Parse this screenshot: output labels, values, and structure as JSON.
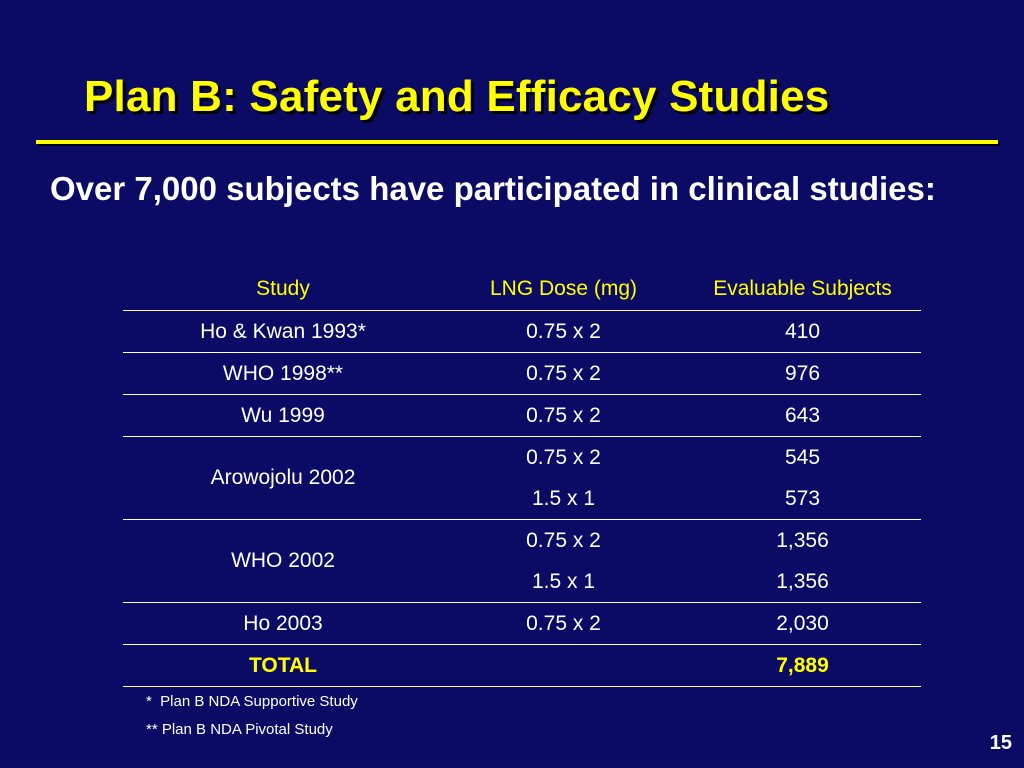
{
  "slide": {
    "title": "Plan B: Safety and Efficacy Studies",
    "subtitle": "Over 7,000 subjects have participated in clinical studies:",
    "page_number": "15",
    "colors": {
      "background": "#0b0b66",
      "accent": "#ffff00",
      "text": "#ffffff"
    }
  },
  "table": {
    "headers": [
      "Study",
      "LNG Dose (mg)",
      "Evaluable Subjects"
    ],
    "rows": [
      {
        "study": "Ho & Kwan 1993*",
        "dose": "0.75 x 2",
        "subjects": "410"
      },
      {
        "study": "WHO 1998**",
        "dose": "0.75 x 2",
        "subjects": "976"
      },
      {
        "study": "Wu 1999",
        "dose": "0.75 x 2",
        "subjects": "643"
      },
      {
        "study": "Arowojolu 2002",
        "dose": "0.75 x 2",
        "subjects": "545"
      },
      {
        "study": "",
        "dose": "1.5 x 1",
        "subjects": "573"
      },
      {
        "study": "WHO 2002",
        "dose": "0.75 x 2",
        "subjects": "1,356"
      },
      {
        "study": "",
        "dose": "1.5 x 1",
        "subjects": "1,356"
      },
      {
        "study": "Ho 2003",
        "dose": "0.75 x 2",
        "subjects": "2,030"
      }
    ],
    "total": {
      "label": "TOTAL",
      "dose": "",
      "subjects": "7,889"
    }
  },
  "footnotes": [
    "*  Plan B NDA Supportive Study",
    "** Plan B NDA Pivotal Study"
  ]
}
